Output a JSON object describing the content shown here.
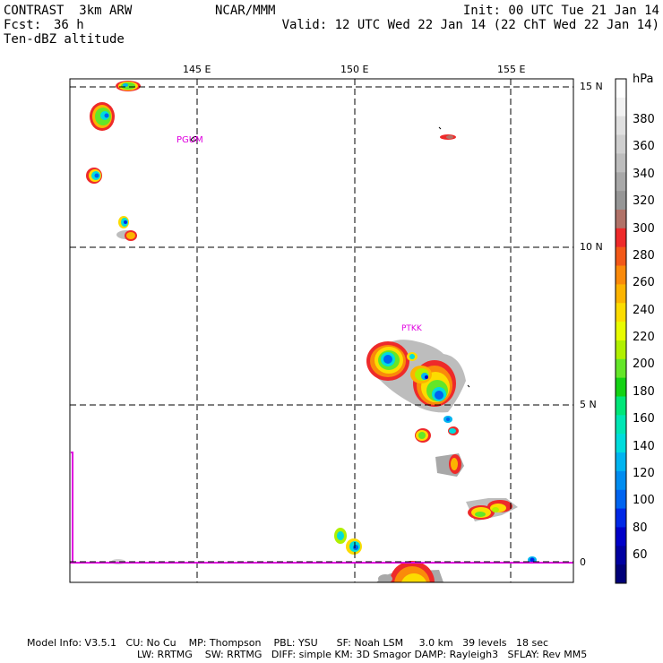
{
  "header": {
    "model": "CONTRAST  3km ARW",
    "fcst_label": "Fcst:",
    "fcst_value": "36 h",
    "field": "Ten-dBZ altitude",
    "center": "NCAR/MMM",
    "init": "Init: 00 UTC Tue 21 Jan 14",
    "valid": "Valid: 12 UTC Wed 22 Jan 14 (22 ChT Wed 22 Jan 14)"
  },
  "map": {
    "lon_labels": [
      "145 E",
      "150 E",
      "155 E"
    ],
    "lat_labels": [
      "15 N",
      "10 N",
      "5 N",
      "0"
    ],
    "stations": [
      "PGUM",
      "PTKK"
    ]
  },
  "colorbar": {
    "unit": "hPa",
    "labels": [
      "380",
      "360",
      "340",
      "320",
      "300",
      "280",
      "260",
      "240",
      "220",
      "200",
      "180",
      "160",
      "140",
      "120",
      "100",
      "80",
      "60"
    ],
    "colors": [
      "#ffffff",
      "#f2f2f2",
      "#e0e0e0",
      "#cfcfcf",
      "#bdbdbd",
      "#a8a8a8",
      "#969696",
      "#b07268",
      "#ee2a2a",
      "#f25818",
      "#fa8a0a",
      "#fcb400",
      "#fcdc00",
      "#e8fc00",
      "#b0f000",
      "#64e628",
      "#14d214",
      "#00e678",
      "#00e6b4",
      "#00dcdc",
      "#00b4f0",
      "#008cf0",
      "#0064f0",
      "#0028e6",
      "#0000c8",
      "#0000a0",
      "#000078"
    ]
  },
  "footer": {
    "line1": "Model Info: V3.5.1   CU: No Cu    MP: Thompson    PBL: YSU      SF: Noah LSM     3.0 km   39 levels   18 sec",
    "line2": "LW: RRTMG    SW: RRTMG   DIFF: simple KM: 3D Smagor DAMP: Rayleigh3   SFLAY: Rev MM5"
  }
}
